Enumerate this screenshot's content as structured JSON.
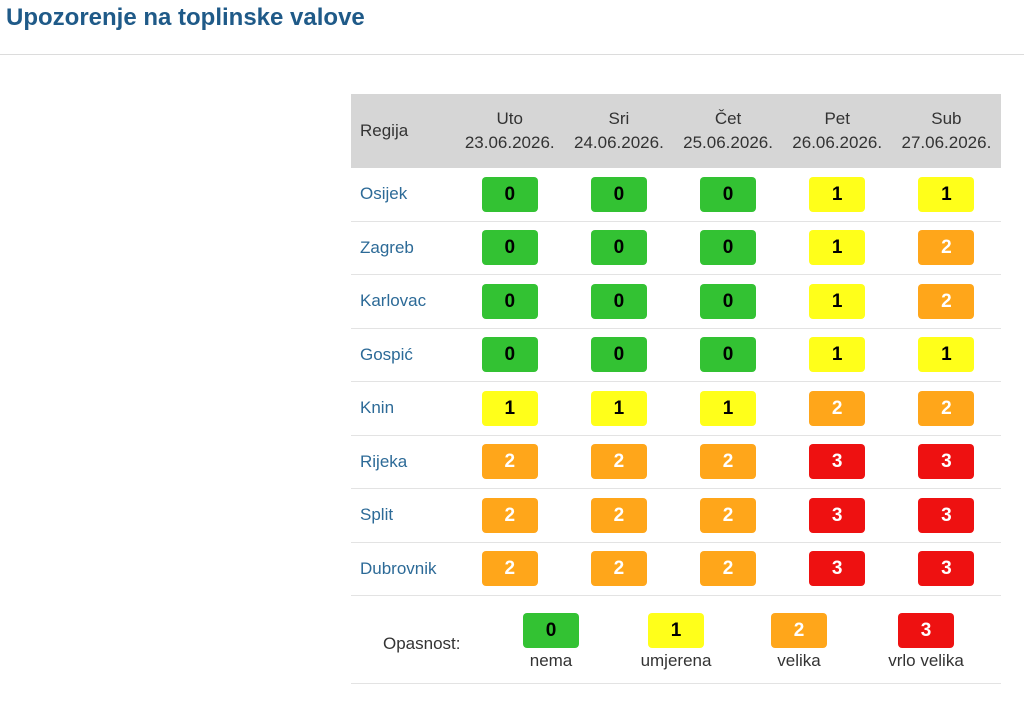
{
  "page": {
    "title": "Upozorenje na toplinske valove"
  },
  "table": {
    "region_header": "Regija",
    "days": [
      {
        "name": "Uto",
        "date": "23.06.2026."
      },
      {
        "name": "Sri",
        "date": "24.06.2026."
      },
      {
        "name": "Čet",
        "date": "25.06.2026."
      },
      {
        "name": "Pet",
        "date": "26.06.2026."
      },
      {
        "name": "Sub",
        "date": "27.06.2026."
      }
    ],
    "rows": [
      {
        "region": "Osijek",
        "levels": [
          "0",
          "0",
          "0",
          "1",
          "1"
        ]
      },
      {
        "region": "Zagreb",
        "levels": [
          "0",
          "0",
          "0",
          "1",
          "2"
        ]
      },
      {
        "region": "Karlovac",
        "levels": [
          "0",
          "0",
          "0",
          "1",
          "2"
        ]
      },
      {
        "region": "Gospić",
        "levels": [
          "0",
          "0",
          "0",
          "1",
          "1"
        ]
      },
      {
        "region": "Knin",
        "levels": [
          "1",
          "1",
          "1",
          "2",
          "2"
        ]
      },
      {
        "region": "Rijeka",
        "levels": [
          "2",
          "2",
          "2",
          "3",
          "3"
        ]
      },
      {
        "region": "Split",
        "levels": [
          "2",
          "2",
          "2",
          "3",
          "3"
        ]
      },
      {
        "region": "Dubrovnik",
        "levels": [
          "2",
          "2",
          "2",
          "3",
          "3"
        ]
      }
    ]
  },
  "legend": {
    "label": "Opasnost:",
    "items": [
      {
        "level": "0",
        "text": "nema",
        "color": "#33c233"
      },
      {
        "level": "1",
        "text": "umjerena",
        "color": "#ffff1a"
      },
      {
        "level": "2",
        "text": "velika",
        "color": "#ffa61a"
      },
      {
        "level": "3",
        "text": "vrlo velika",
        "color": "#ee1111"
      }
    ]
  }
}
